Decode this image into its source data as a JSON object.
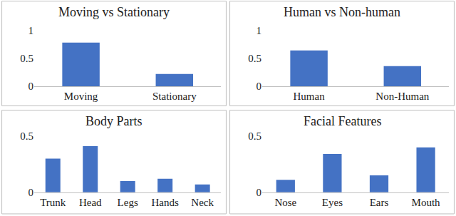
{
  "chart_data": [
    {
      "type": "bar",
      "title": "Moving vs Stationary",
      "categories": [
        "Moving",
        "Stationary"
      ],
      "values": [
        0.78,
        0.22
      ],
      "color": "#4472c4",
      "ylim": [
        0,
        1
      ],
      "yticks": [
        0,
        0.5,
        1
      ],
      "grid": false
    },
    {
      "type": "bar",
      "title": "Human vs Non-human",
      "categories": [
        "Human",
        "Non-Human"
      ],
      "values": [
        0.64,
        0.36
      ],
      "color": "#4472c4",
      "ylim": [
        0,
        1
      ],
      "yticks": [
        0,
        0.5,
        1
      ],
      "grid": false
    },
    {
      "type": "bar",
      "title": "Body Parts",
      "categories": [
        "Trunk",
        "Head",
        "Legs",
        "Hands",
        "Neck"
      ],
      "values": [
        0.3,
        0.41,
        0.1,
        0.12,
        0.07
      ],
      "color": "#4472c4",
      "ylim": [
        0,
        0.5
      ],
      "yticks": [
        0,
        0.5
      ],
      "grid": false
    },
    {
      "type": "bar",
      "title": "Facial Features",
      "categories": [
        "Nose",
        "Eyes",
        "Ears",
        "Mouth"
      ],
      "values": [
        0.11,
        0.34,
        0.15,
        0.4
      ],
      "color": "#4472c4",
      "ylim": [
        0,
        0.5
      ],
      "yticks": [
        0,
        0.5
      ],
      "grid": false
    }
  ]
}
